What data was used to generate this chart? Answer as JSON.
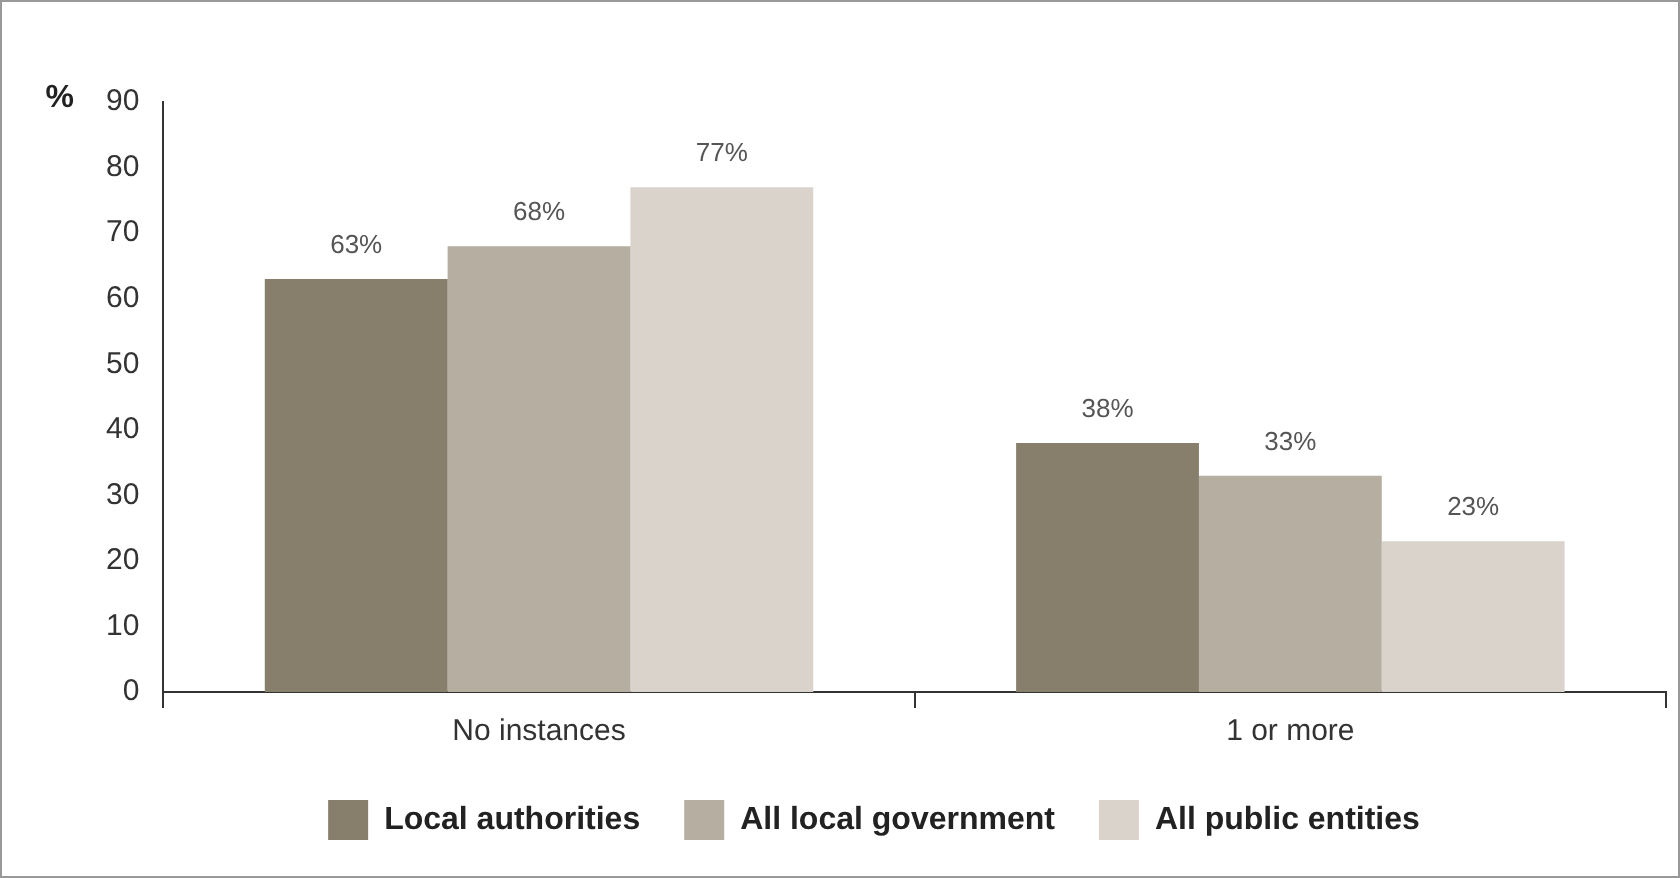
{
  "chart_data": {
    "type": "bar",
    "ylabel": "%",
    "categories": [
      "No instances",
      "1 or more"
    ],
    "series": [
      {
        "name": "Local authorities",
        "color": "#877e6c",
        "values": [
          63,
          38
        ],
        "value_labels": [
          "63%",
          "38%"
        ]
      },
      {
        "name": "All local government",
        "color": "#b5aea1",
        "values": [
          68,
          33
        ],
        "value_labels": [
          "68%",
          "33%"
        ]
      },
      {
        "name": "All public entities",
        "color": "#d9d3cc",
        "values": [
          77,
          23
        ],
        "value_labels": [
          "77%",
          "23%"
        ]
      }
    ],
    "ylim": [
      0,
      90
    ],
    "yticks": [
      0,
      10,
      20,
      30,
      40,
      50,
      60,
      70,
      80,
      90
    ],
    "grid": false,
    "legend": "bottom"
  }
}
